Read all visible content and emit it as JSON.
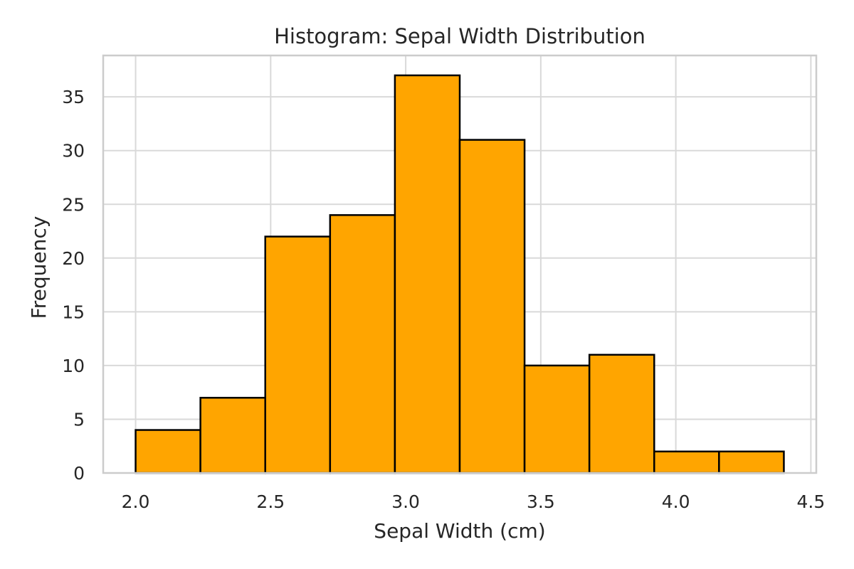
{
  "chart_data": {
    "type": "bar",
    "subtype": "histogram",
    "title": "Histogram: Sepal Width Distribution",
    "xlabel": "Sepal Width (cm)",
    "ylabel": "Frequency",
    "bin_edges": [
      2.0,
      2.24,
      2.48,
      2.72,
      2.96,
      3.2,
      3.44,
      3.68,
      3.92,
      4.16,
      4.4
    ],
    "values": [
      4,
      7,
      22,
      24,
      37,
      31,
      10,
      11,
      2,
      2
    ],
    "xlim": [
      1.88,
      4.52
    ],
    "ylim": [
      0,
      38.85
    ],
    "xticks": [
      2.0,
      2.5,
      3.0,
      3.5,
      4.0,
      4.5
    ],
    "xtick_labels": [
      "2.0",
      "2.5",
      "3.0",
      "3.5",
      "4.0",
      "4.5"
    ],
    "yticks": [
      0,
      5,
      10,
      15,
      20,
      25,
      30,
      35
    ],
    "ytick_labels": [
      "0",
      "5",
      "10",
      "15",
      "20",
      "25",
      "30",
      "35"
    ],
    "grid": true,
    "legend": "none"
  },
  "colors": {
    "bar_fill": "#FFA500",
    "bar_edge": "#000000",
    "grid": "#D9D9D9",
    "spine": "#CCCCCC",
    "text": "#262626",
    "background": "#FFFFFF"
  }
}
